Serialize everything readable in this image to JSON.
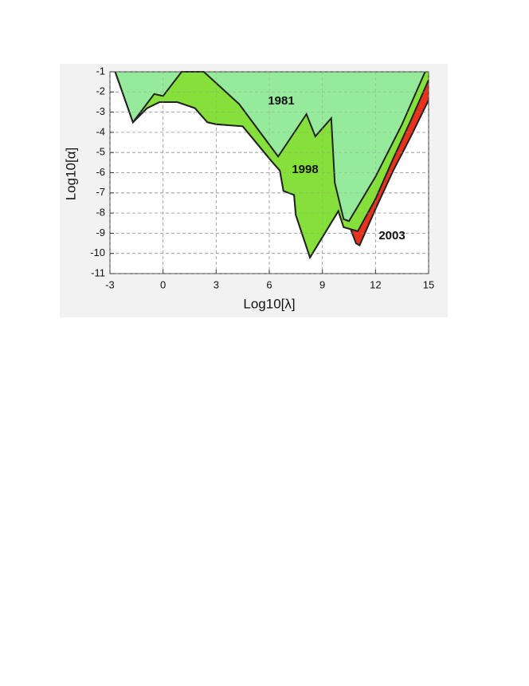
{
  "chart_data": {
    "type": "area",
    "x_label": "Log10[λ]",
    "y_label": "Log10[α]",
    "xlim": [
      -3,
      15
    ],
    "xticks": [
      -3,
      0,
      3,
      6,
      9,
      12,
      15
    ],
    "ylim": [
      -11,
      -1
    ],
    "yticks": [
      -11,
      -10,
      -9,
      -8,
      -7,
      -6,
      -5,
      -4,
      -3,
      -2,
      -1
    ],
    "grid": true,
    "series": [
      {
        "name": "2003",
        "color": "#e8321e",
        "x": [
          -2.7,
          -1.7,
          -0.9,
          -0.2,
          0.8,
          1.8,
          2.5,
          3,
          4.5,
          6.1,
          6.6,
          6.8,
          7.4,
          7.5,
          8.3,
          9.9,
          10.2,
          10.6,
          10.9,
          11.1,
          12,
          13,
          14,
          15
        ],
        "values": [
          -1,
          -3.5,
          -2.8,
          -2.5,
          -2.5,
          -2.8,
          -3.5,
          -3.6,
          -3.7,
          -5.4,
          -5.9,
          -6.9,
          -7.1,
          -8.1,
          -10.2,
          -7.9,
          -8.7,
          -8.8,
          -9.5,
          -9.6,
          -7.8,
          -5.9,
          -4.2,
          -2.4
        ]
      },
      {
        "name": "1998",
        "color": "#86e03a",
        "x": [
          -2.7,
          -1.7,
          -0.9,
          -0.2,
          0.8,
          1.8,
          2.5,
          3,
          4.5,
          6.1,
          6.6,
          6.8,
          7.4,
          7.5,
          8.3,
          9.9,
          10.2,
          11,
          12,
          13,
          14,
          15
        ],
        "values": [
          -1,
          -3.5,
          -2.8,
          -2.5,
          -2.5,
          -2.8,
          -3.5,
          -3.6,
          -3.7,
          -5.4,
          -5.9,
          -6.9,
          -7.1,
          -8.1,
          -10.2,
          -7.9,
          -8.7,
          -8.9,
          -7.3,
          -5.3,
          -3.4,
          -1.4
        ]
      },
      {
        "name": "1981",
        "color": "#96ea9c",
        "x": [
          -2.7,
          -1.7,
          -0.5,
          0,
          1.05,
          2.3,
          4.3,
          6.5,
          8.1,
          8.6,
          9.5,
          9.7,
          10.2,
          10.5,
          12,
          13.5,
          14.8
        ],
        "values": [
          -1,
          -3.5,
          -2.1,
          -2.2,
          -1,
          -1,
          -2.6,
          -5.2,
          -3.1,
          -4.2,
          -3.3,
          -6.5,
          -8.3,
          -8.4,
          -6.2,
          -3.6,
          -1
        ]
      }
    ]
  }
}
